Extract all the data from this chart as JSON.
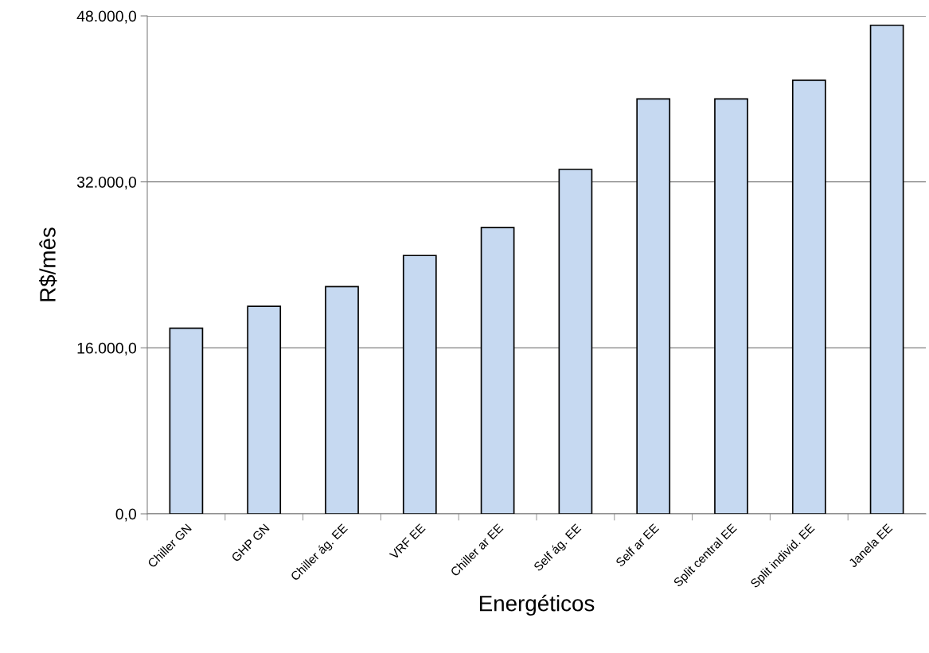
{
  "chart_data": {
    "type": "bar",
    "xlabel": "Energéticos",
    "ylabel": "R$/mês",
    "categories": [
      "Chiller GN",
      "GHP GN",
      "Chiller ág. EE",
      "VRF EE",
      "Chiller ar EE",
      "Self ág. EE",
      "Self ar EE",
      "Split central EE",
      "Split individ. EE",
      "Janela EE"
    ],
    "values": [
      17900,
      20000,
      21900,
      24900,
      27600,
      33200,
      40000,
      40000,
      41800,
      47100
    ],
    "color": "#c6d9f1",
    "ylim": [
      0,
      48000
    ],
    "yticks": [
      {
        "value": 0,
        "label": "0,0"
      },
      {
        "value": 16000,
        "label": "16.000,0"
      },
      {
        "value": 32000,
        "label": "32.000,0"
      },
      {
        "value": 48000,
        "label": "48.000,0"
      }
    ],
    "grid": "y",
    "legend": false
  }
}
